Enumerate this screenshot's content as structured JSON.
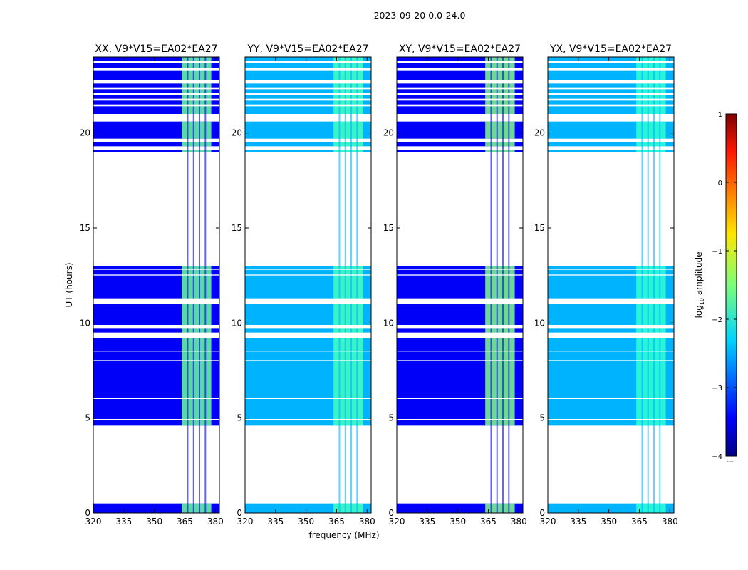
{
  "figure": {
    "suptitle": "2023-09-20 0.0-24.0",
    "xlabel": "frequency (MHz)",
    "ylabel": "UT (hours)"
  },
  "colorbar": {
    "label_main": "log",
    "label_sub": "10",
    "label_tail": " amplitude",
    "range": [
      -4,
      1
    ],
    "ticks": [
      1,
      0,
      -1,
      -2,
      -3,
      -4
    ],
    "tick_labels": [
      "1",
      "0",
      "−1",
      "−2",
      "−3",
      "−4"
    ],
    "footnote": "......"
  },
  "chart_data": {
    "type": "heatmap",
    "x_range": [
      320,
      382
    ],
    "y_range": [
      0,
      24
    ],
    "x_ticks": [
      320,
      335,
      350,
      365,
      380
    ],
    "x_tick_labels": [
      "320",
      "335",
      "350",
      "365",
      "380"
    ],
    "y_ticks": [
      0,
      5,
      10,
      15,
      20
    ],
    "y_tick_labels": [
      "0",
      "5",
      "10",
      "15",
      "20"
    ],
    "data_segments_hours": [
      [
        0.0,
        0.5
      ],
      [
        4.6,
        13.0
      ],
      [
        19.0,
        19.1
      ],
      [
        19.3,
        19.5
      ],
      [
        19.7,
        20.6
      ],
      [
        21.0,
        24.0
      ]
    ],
    "blank_lines_hours": [
      [
        11.0,
        11.3
      ],
      [
        9.2,
        9.5
      ],
      [
        9.7,
        9.9
      ],
      [
        21.4,
        21.5
      ],
      [
        21.7,
        21.8
      ],
      [
        22.0,
        22.1
      ],
      [
        22.3,
        22.4
      ],
      [
        22.6,
        22.8
      ],
      [
        23.3,
        23.4
      ],
      [
        23.7,
        23.8
      ],
      [
        6.0,
        6.05
      ],
      [
        8.0,
        8.05
      ],
      [
        8.5,
        8.55
      ],
      [
        12.5,
        12.55
      ],
      [
        12.8,
        12.85
      ],
      [
        4.9,
        4.95
      ]
    ],
    "bright_band_mhz": [
      363.5,
      382
    ],
    "panels": [
      {
        "title": "XX, V9*V15=EA02*EA27",
        "background_log_amp": -3.4,
        "band_log_amp": -1.6
      },
      {
        "title": "YY, V9*V15=EA02*EA27",
        "background_log_amp": -2.5,
        "band_log_amp": -1.8
      },
      {
        "title": "XY, V9*V15=EA02*EA27",
        "background_log_amp": -3.4,
        "band_log_amp": -1.5
      },
      {
        "title": "YX, V9*V15=EA02*EA27",
        "background_log_amp": -2.5,
        "band_log_amp": -1.9
      }
    ]
  }
}
